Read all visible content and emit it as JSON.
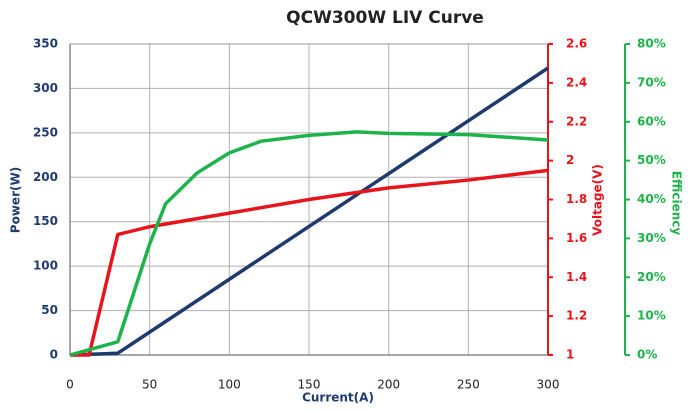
{
  "chart_data": {
    "type": "line",
    "title": "QCW300W LIV Curve",
    "xlabel": "Current(A)",
    "ylabel": "Power(W)",
    "y2label": "Voltage(V)",
    "y3label": "Efficiency",
    "xlim": [
      0,
      300
    ],
    "xticks": [
      0,
      50,
      100,
      150,
      200,
      250,
      300
    ],
    "ylim": [
      0,
      350
    ],
    "yticks": [
      0,
      50,
      100,
      150,
      200,
      250,
      300,
      350
    ],
    "y2lim": [
      1,
      2.6
    ],
    "y2ticks": [
      1,
      1.2,
      1.4,
      1.6,
      1.8,
      2,
      2.2,
      2.4,
      2.6
    ],
    "y3lim": [
      0,
      80
    ],
    "y3ticks": [
      {
        "value": 0,
        "label": "0%"
      },
      {
        "value": 10,
        "label": "10%"
      },
      {
        "value": 20,
        "label": "20%"
      },
      {
        "value": 30,
        "label": "30%"
      },
      {
        "value": 40,
        "label": "40%"
      },
      {
        "value": 50,
        "label": "50%"
      },
      {
        "value": 60,
        "label": "60%"
      },
      {
        "value": 70,
        "label": "70%"
      },
      {
        "value": 80,
        "label": "80%"
      }
    ],
    "grid": true,
    "series": [
      {
        "name": "Power",
        "color": "#1f3a6e",
        "axis": "y",
        "x": [
          0,
          30,
          300
        ],
        "values": [
          0,
          2,
          323
        ]
      },
      {
        "name": "Voltage",
        "color": "#e8141c",
        "axis": "y2",
        "x": [
          0,
          12,
          30,
          50,
          100,
          150,
          200,
          250,
          300
        ],
        "values": [
          1.0,
          1.0,
          1.62,
          1.66,
          1.73,
          1.8,
          1.86,
          1.9,
          1.95
        ]
      },
      {
        "name": "Efficiency",
        "color": "#1db34a",
        "axis": "y3",
        "x": [
          0,
          30,
          50,
          60,
          80,
          100,
          120,
          150,
          180,
          200,
          250,
          300
        ],
        "values": [
          0,
          3.4,
          28.6,
          38.9,
          46.9,
          52,
          55,
          56.5,
          57.4,
          57,
          56.7,
          55.3
        ]
      }
    ]
  }
}
